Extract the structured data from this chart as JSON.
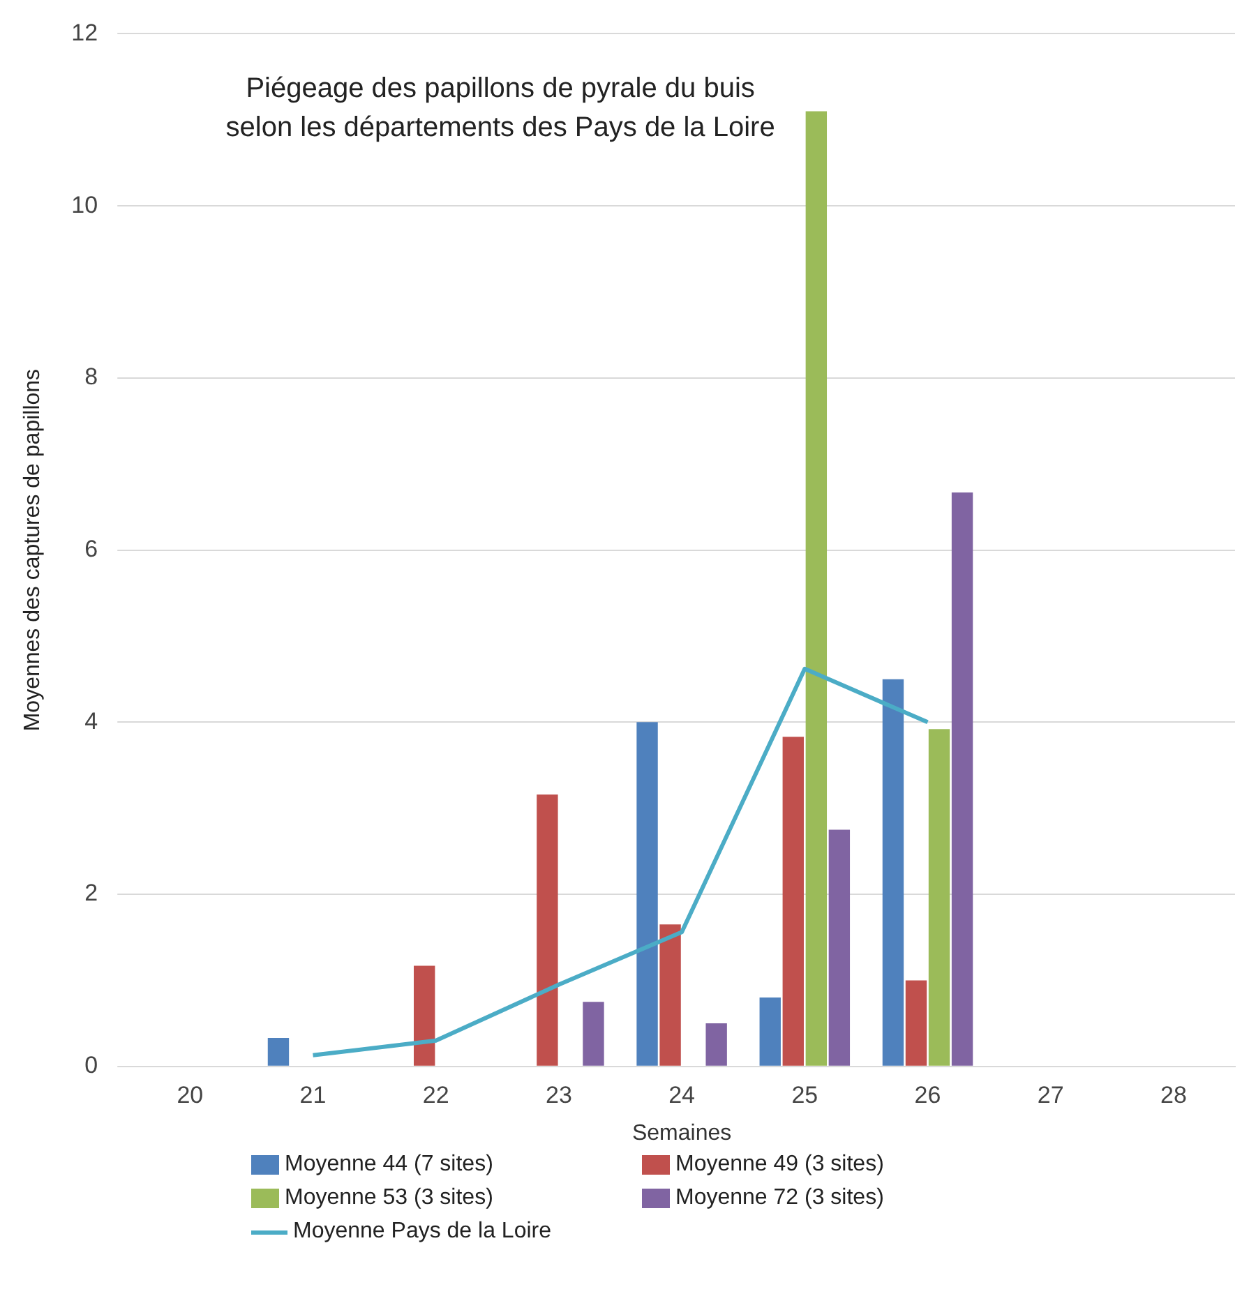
{
  "chart_data": {
    "type": "bar",
    "title": "Piégeage des papillons de pyrale du buis\nselon les départements des Pays de la Loire",
    "xlabel": "Semaines",
    "ylabel": "Moyennes des captures de papillons",
    "categories": [
      "20",
      "21",
      "22",
      "23",
      "24",
      "25",
      "26",
      "27",
      "28"
    ],
    "series": [
      {
        "name": "Moyenne 44 (7 sites)",
        "color": "#4f81bd",
        "values": [
          null,
          0.33,
          null,
          null,
          4.0,
          0.8,
          4.5,
          null,
          null
        ]
      },
      {
        "name": "Moyenne 49 (3 sites)",
        "color": "#c0504d",
        "values": [
          null,
          null,
          1.17,
          3.16,
          1.65,
          3.83,
          1.0,
          null,
          null
        ]
      },
      {
        "name": "Moyenne 53 (3 sites)",
        "color": "#9bbb59",
        "values": [
          null,
          null,
          null,
          null,
          null,
          11.1,
          3.92,
          null,
          null
        ]
      },
      {
        "name": "Moyenne 72 (3 sites)",
        "color": "#8064a2",
        "values": [
          null,
          null,
          null,
          0.75,
          0.5,
          2.75,
          6.67,
          null,
          null
        ]
      },
      {
        "name": "Moyenne Pays de la Loire",
        "type": "line",
        "color": "#4bacc6",
        "values": [
          null,
          0.13,
          0.3,
          0.95,
          1.56,
          4.62,
          4.0,
          null,
          null
        ]
      }
    ],
    "ylim": [
      0,
      12
    ],
    "yticks": [
      0,
      2,
      4,
      6,
      8,
      10,
      12
    ],
    "grid": "y",
    "legend": "bottom",
    "marker": "none"
  }
}
